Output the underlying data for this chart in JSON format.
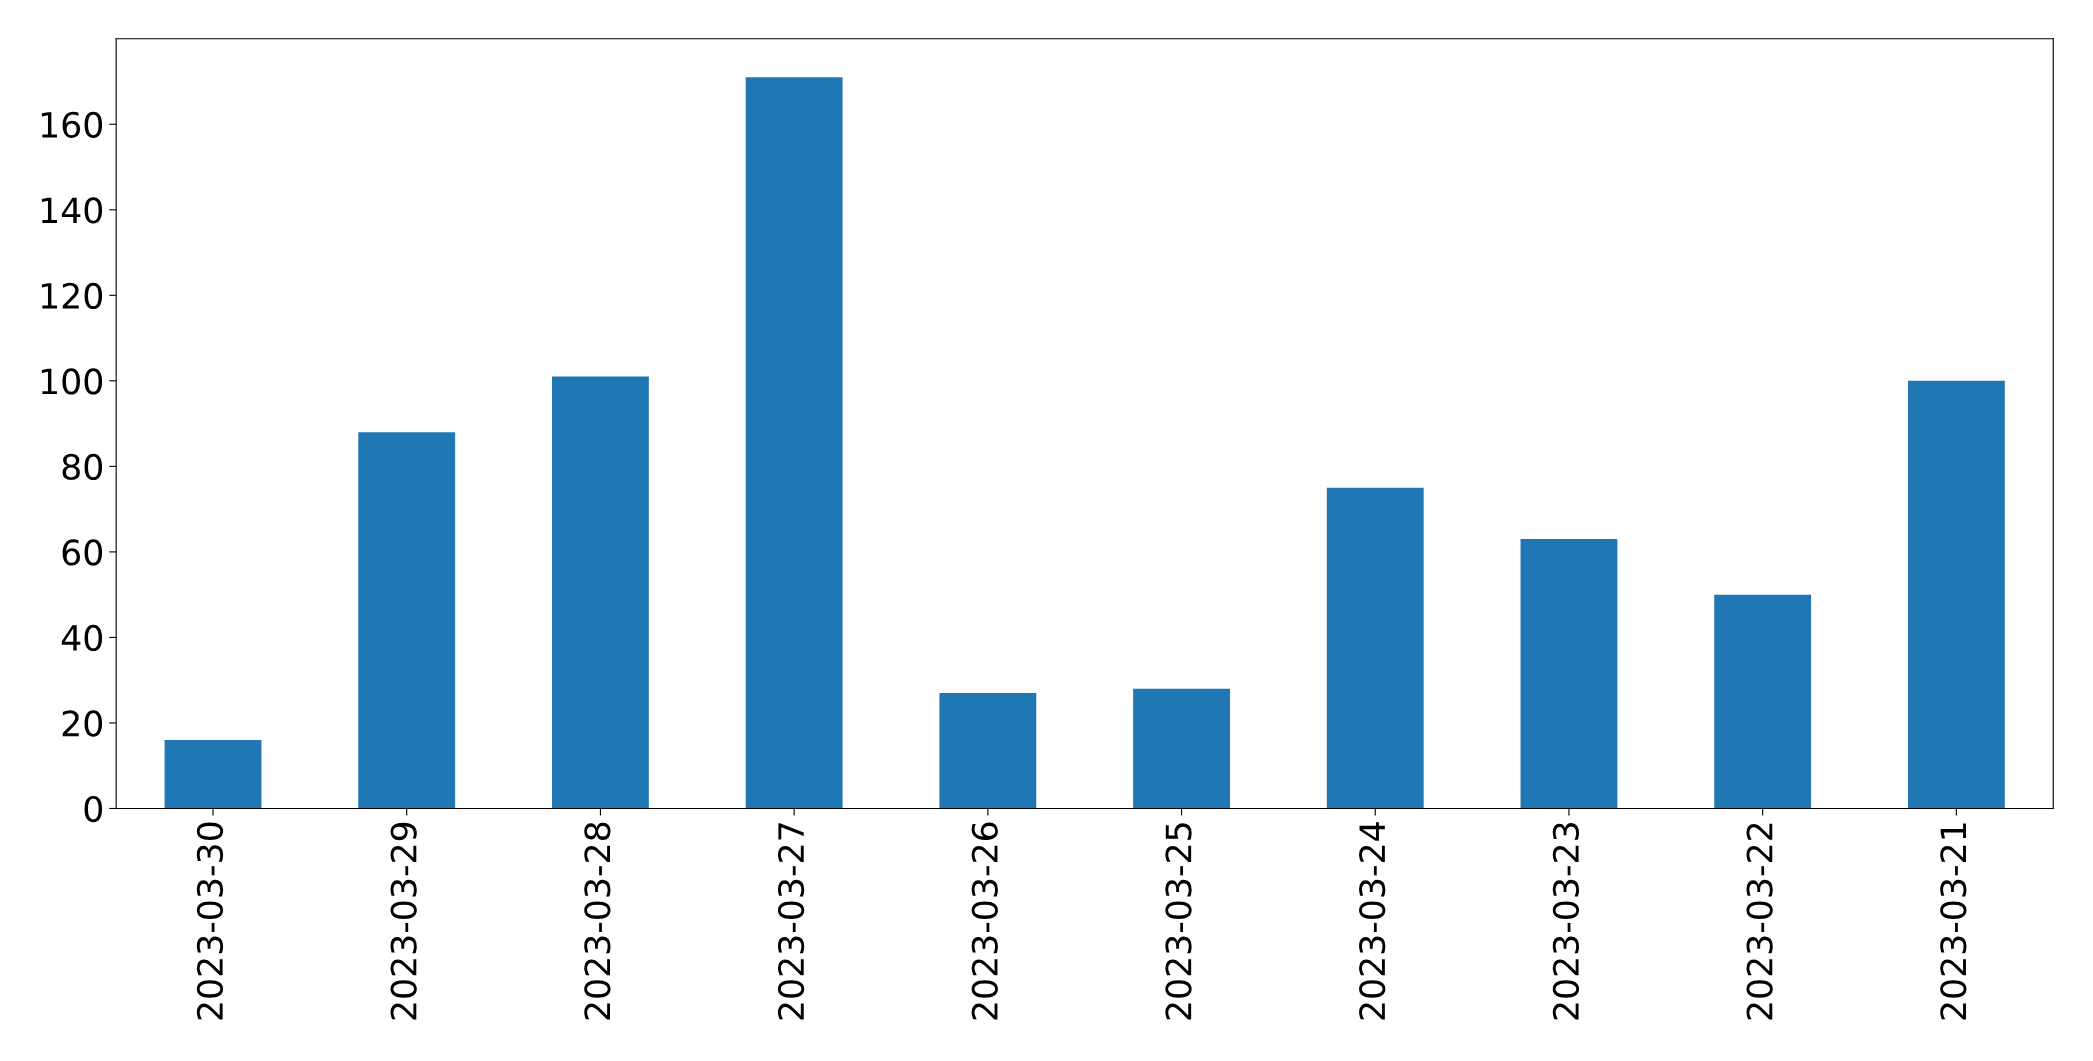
{
  "chart_data": {
    "type": "bar",
    "categories": [
      "2023-03-30",
      "2023-03-29",
      "2023-03-28",
      "2023-03-27",
      "2023-03-26",
      "2023-03-25",
      "2023-03-24",
      "2023-03-23",
      "2023-03-22",
      "2023-03-21"
    ],
    "values": [
      16,
      88,
      101,
      171,
      27,
      28,
      75,
      63,
      50,
      100
    ],
    "color": "#1f77b4",
    "ylim": [
      0,
      180
    ],
    "yticks": [
      0,
      20,
      40,
      60,
      80,
      100,
      120,
      140,
      160
    ],
    "grid": false
  }
}
